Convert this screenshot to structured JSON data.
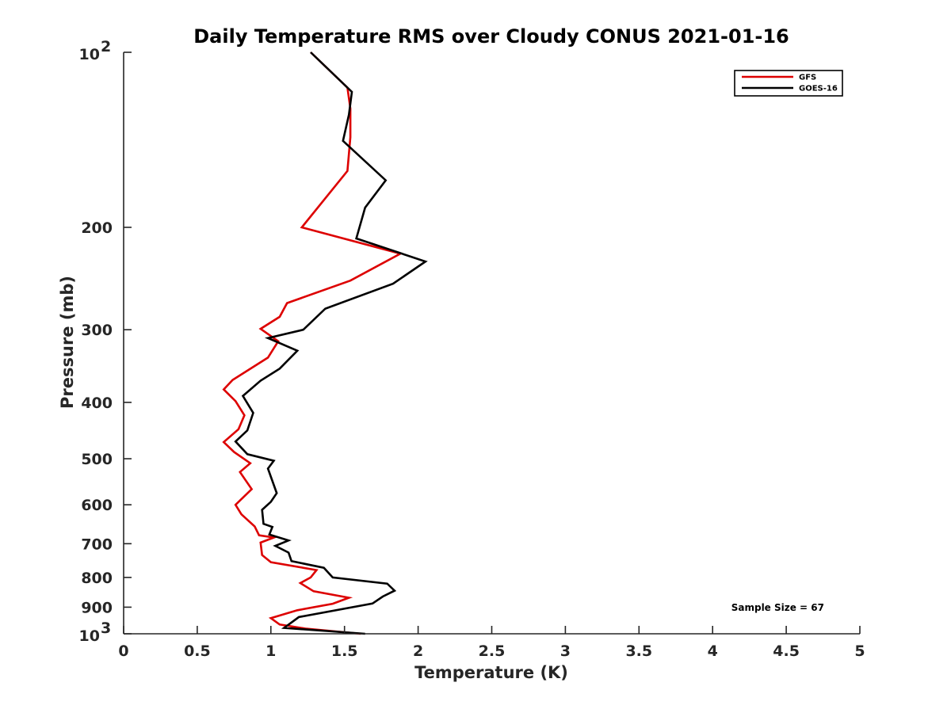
{
  "chart_data": {
    "type": "line",
    "title": "Daily Temperature RMS over Cloudy CONUS 2021-01-16",
    "xlabel": "Temperature (K)",
    "ylabel": "Pressure (mb)",
    "xlim": [
      0,
      5
    ],
    "ylim": [
      100,
      1000
    ],
    "y_scale": "log",
    "y_reversed": true,
    "grid": false,
    "legend_position": "top-right",
    "x_ticks": [
      "0",
      "0.5",
      "1",
      "1.5",
      "2",
      "2.5",
      "3",
      "3.5",
      "4",
      "4.5",
      "5"
    ],
    "x_tick_values": [
      0,
      0.5,
      1,
      1.5,
      2,
      2.5,
      3,
      3.5,
      4,
      4.5,
      5
    ],
    "y_ticks": [
      {
        "value": 100,
        "base": "10",
        "exp": "2"
      },
      {
        "value": 200,
        "label": "200"
      },
      {
        "value": 300,
        "label": "300"
      },
      {
        "value": 400,
        "label": "400"
      },
      {
        "value": 500,
        "label": "500"
      },
      {
        "value": 600,
        "label": "600"
      },
      {
        "value": 700,
        "label": "700"
      },
      {
        "value": 800,
        "label": "800"
      },
      {
        "value": 900,
        "label": "900"
      },
      {
        "value": 1000,
        "base": "10",
        "exp": "3"
      }
    ],
    "annotation": "Sample Size = 67",
    "series": [
      {
        "name": "GFS",
        "color": "#dd0000",
        "points": [
          [
            1.27,
            100
          ],
          [
            1.52,
            115
          ],
          [
            1.54,
            125
          ],
          [
            1.54,
            140
          ],
          [
            1.52,
            160
          ],
          [
            1.21,
            200
          ],
          [
            1.88,
            222
          ],
          [
            1.54,
            247
          ],
          [
            1.11,
            270
          ],
          [
            1.06,
            285
          ],
          [
            0.93,
            299
          ],
          [
            1.05,
            314
          ],
          [
            0.98,
            335
          ],
          [
            0.74,
            366
          ],
          [
            0.68,
            380
          ],
          [
            0.76,
            398
          ],
          [
            0.82,
            421
          ],
          [
            0.78,
            445
          ],
          [
            0.68,
            468
          ],
          [
            0.75,
            487
          ],
          [
            0.86,
            509
          ],
          [
            0.79,
            527
          ],
          [
            0.87,
            564
          ],
          [
            0.76,
            600
          ],
          [
            0.8,
            623
          ],
          [
            0.89,
            654
          ],
          [
            0.92,
            677
          ],
          [
            1.02,
            683
          ],
          [
            0.93,
            697
          ],
          [
            0.94,
            732
          ],
          [
            1.0,
            753
          ],
          [
            1.31,
            777
          ],
          [
            1.27,
            800
          ],
          [
            1.2,
            818
          ],
          [
            1.29,
            845
          ],
          [
            1.53,
            867
          ],
          [
            1.42,
            888
          ],
          [
            1.18,
            911
          ],
          [
            1.0,
            940
          ],
          [
            1.06,
            964
          ],
          [
            1.24,
            980
          ],
          [
            1.61,
            1000
          ]
        ]
      },
      {
        "name": "GOES-16",
        "color": "#000000",
        "points": [
          [
            1.27,
            100
          ],
          [
            1.55,
            117
          ],
          [
            1.53,
            128
          ],
          [
            1.49,
            142
          ],
          [
            1.78,
            166
          ],
          [
            1.64,
            185
          ],
          [
            1.58,
            209
          ],
          [
            2.05,
            229
          ],
          [
            1.83,
            250
          ],
          [
            1.37,
            276
          ],
          [
            1.22,
            300
          ],
          [
            0.98,
            310
          ],
          [
            1.18,
            326
          ],
          [
            1.06,
            350
          ],
          [
            0.93,
            367
          ],
          [
            0.81,
            390
          ],
          [
            0.88,
            417
          ],
          [
            0.84,
            447
          ],
          [
            0.76,
            467
          ],
          [
            0.84,
            491
          ],
          [
            1.02,
            504
          ],
          [
            0.98,
            520
          ],
          [
            1.04,
            573
          ],
          [
            1.0,
            593
          ],
          [
            0.94,
            612
          ],
          [
            0.95,
            647
          ],
          [
            1.01,
            655
          ],
          [
            0.99,
            675
          ],
          [
            1.12,
            691
          ],
          [
            1.03,
            706
          ],
          [
            1.12,
            725
          ],
          [
            1.14,
            750
          ],
          [
            1.36,
            770
          ],
          [
            1.42,
            800
          ],
          [
            1.79,
            820
          ],
          [
            1.84,
            843
          ],
          [
            1.76,
            863
          ],
          [
            1.69,
            887
          ],
          [
            1.19,
            936
          ],
          [
            1.09,
            977
          ],
          [
            1.64,
            1000
          ]
        ]
      }
    ]
  }
}
